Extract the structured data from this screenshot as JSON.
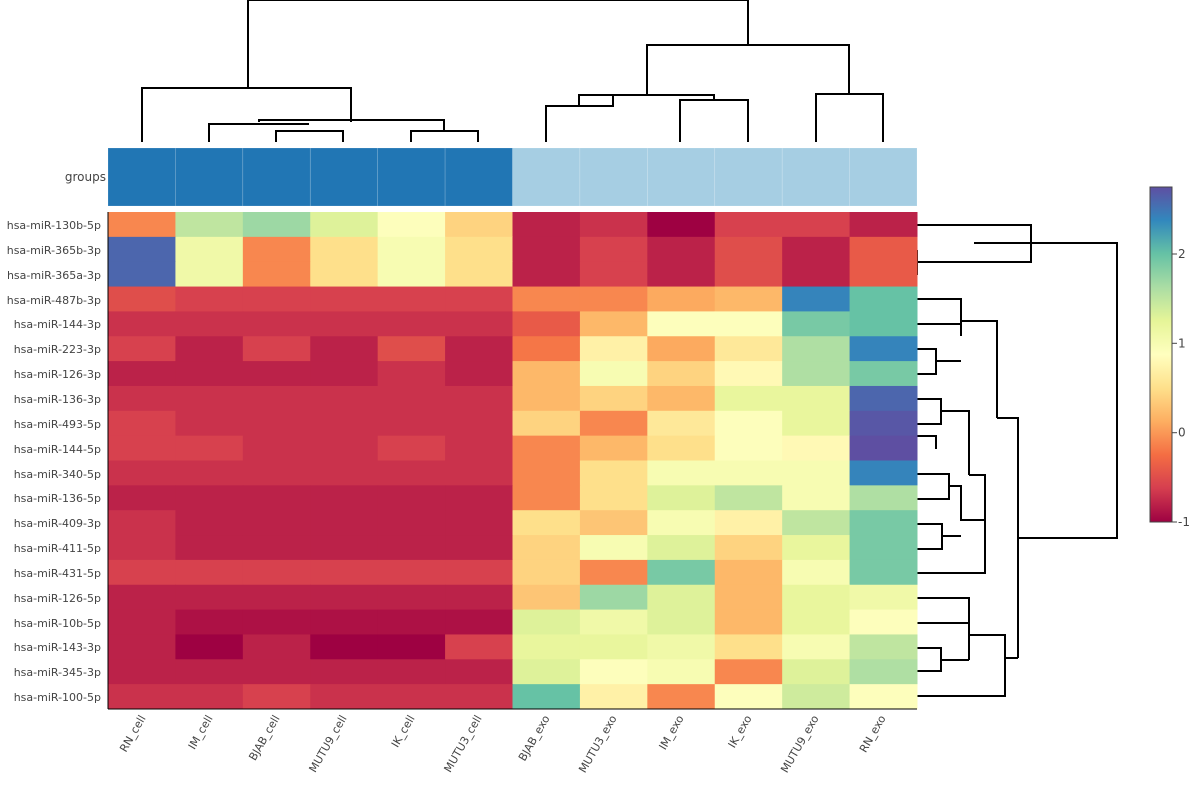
{
  "chart_data": {
    "type": "heatmap",
    "title": "",
    "xlabel": "",
    "ylabel": "",
    "groups_label": "groups",
    "columns": [
      "RN_cell",
      "IM_cell",
      "BJAB_cell",
      "MUTU9_cell",
      "IK_cell",
      "MUTU3_cell",
      "BJAB_exo",
      "MUTU3_exo",
      "IM_exo",
      "IK_exo",
      "MUTU9_exo",
      "RN_exo"
    ],
    "groups": [
      "cell",
      "cell",
      "cell",
      "cell",
      "cell",
      "cell",
      "exo",
      "exo",
      "exo",
      "exo",
      "exo",
      "exo"
    ],
    "group_colors": {
      "cell": "#2176b4",
      "exo": "#a6cee3"
    },
    "rows": [
      "hsa-miR-130b-5p",
      "hsa-miR-365b-3p",
      "hsa-miR-365a-3p",
      "hsa-miR-487b-3p",
      "hsa-miR-144-3p",
      "hsa-miR-223-3p",
      "hsa-miR-126-3p",
      "hsa-miR-136-3p",
      "hsa-miR-493-5p",
      "hsa-miR-144-5p",
      "hsa-miR-340-5p",
      "hsa-miR-136-5p",
      "hsa-miR-409-3p",
      "hsa-miR-411-5p",
      "hsa-miR-431-5p",
      "hsa-miR-126-5p",
      "hsa-miR-10b-5p",
      "hsa-miR-143-3p",
      "hsa-miR-345-3p",
      "hsa-miR-100-5p"
    ],
    "values": [
      [
        -0.1,
        1.5,
        1.7,
        1.3,
        0.9,
        0.4,
        -0.8,
        -0.7,
        -1.0,
        -0.6,
        -0.6,
        -0.8
      ],
      [
        2.6,
        1.1,
        -0.1,
        0.5,
        1.0,
        0.5,
        -0.8,
        -0.6,
        -0.8,
        -0.5,
        -0.8,
        -0.4
      ],
      [
        2.6,
        1.1,
        -0.1,
        0.5,
        1.0,
        0.5,
        -0.8,
        -0.6,
        -0.8,
        -0.5,
        -0.8,
        -0.4
      ],
      [
        -0.5,
        -0.6,
        -0.6,
        -0.6,
        -0.6,
        -0.6,
        -0.1,
        -0.1,
        0.1,
        0.2,
        2.4,
        2.0
      ],
      [
        -0.7,
        -0.7,
        -0.7,
        -0.7,
        -0.7,
        -0.7,
        -0.4,
        0.2,
        0.9,
        0.9,
        1.9,
        2.0
      ],
      [
        -0.6,
        -0.8,
        -0.6,
        -0.8,
        -0.5,
        -0.8,
        -0.2,
        0.7,
        0.1,
        0.6,
        1.6,
        2.4
      ],
      [
        -0.8,
        -0.8,
        -0.8,
        -0.8,
        -0.7,
        -0.8,
        0.2,
        1.0,
        0.4,
        0.8,
        1.6,
        1.9
      ],
      [
        -0.7,
        -0.7,
        -0.7,
        -0.7,
        -0.7,
        -0.7,
        0.2,
        0.4,
        0.2,
        1.2,
        1.2,
        2.6
      ],
      [
        -0.6,
        -0.7,
        -0.7,
        -0.7,
        -0.7,
        -0.7,
        0.4,
        -0.1,
        0.6,
        0.9,
        1.2,
        2.7
      ],
      [
        -0.6,
        -0.6,
        -0.7,
        -0.7,
        -0.6,
        -0.7,
        -0.1,
        0.2,
        0.5,
        0.9,
        0.8,
        2.9
      ],
      [
        -0.7,
        -0.7,
        -0.7,
        -0.7,
        -0.7,
        -0.7,
        -0.1,
        0.5,
        1.0,
        1.0,
        1.0,
        2.4
      ],
      [
        -0.8,
        -0.8,
        -0.8,
        -0.8,
        -0.8,
        -0.8,
        -0.1,
        0.5,
        1.3,
        1.5,
        1.0,
        1.6
      ],
      [
        -0.7,
        -0.8,
        -0.8,
        -0.8,
        -0.8,
        -0.8,
        0.5,
        0.3,
        1.0,
        0.7,
        1.5,
        1.9
      ],
      [
        -0.7,
        -0.8,
        -0.8,
        -0.8,
        -0.8,
        -0.8,
        0.4,
        1.0,
        1.3,
        0.4,
        1.2,
        1.9
      ],
      [
        -0.6,
        -0.6,
        -0.6,
        -0.6,
        -0.6,
        -0.6,
        0.4,
        -0.1,
        1.9,
        0.2,
        1.0,
        1.9
      ],
      [
        -0.8,
        -0.8,
        -0.8,
        -0.8,
        -0.8,
        -0.8,
        0.3,
        1.7,
        1.3,
        0.2,
        1.2,
        1.1
      ],
      [
        -0.8,
        -0.9,
        -0.9,
        -0.9,
        -0.9,
        -0.9,
        1.3,
        1.1,
        1.3,
        0.2,
        1.2,
        0.9
      ],
      [
        -0.8,
        -1.0,
        -0.8,
        -1.0,
        -1.0,
        -0.6,
        1.2,
        1.2,
        1.1,
        0.5,
        1.0,
        1.5
      ],
      [
        -0.8,
        -0.8,
        -0.8,
        -0.8,
        -0.8,
        -0.8,
        1.3,
        0.9,
        1.0,
        -0.1,
        1.3,
        1.6
      ],
      [
        -0.7,
        -0.7,
        -0.6,
        -0.7,
        -0.7,
        -0.7,
        2.0,
        0.7,
        -0.1,
        0.9,
        1.4,
        0.9
      ]
    ],
    "colorbar": {
      "min": -1,
      "max": 2.75,
      "ticks": [
        -1,
        0,
        1,
        2
      ],
      "tick_labels": [
        "-1",
        "0",
        "1",
        "2"
      ]
    },
    "colorscale": "Spectral",
    "column_dendrogram": "top",
    "row_dendrogram": "right",
    "legend": "colorbar right"
  }
}
